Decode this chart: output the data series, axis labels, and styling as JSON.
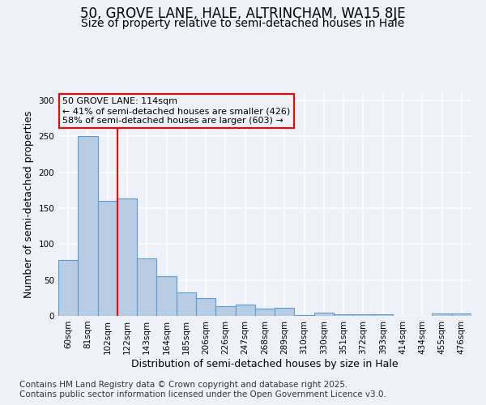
{
  "title": "50, GROVE LANE, HALE, ALTRINCHAM, WA15 8JE",
  "subtitle": "Size of property relative to semi-detached houses in Hale",
  "xlabel": "Distribution of semi-detached houses by size in Hale",
  "ylabel": "Number of semi-detached properties",
  "footnote1": "Contains HM Land Registry data © Crown copyright and database right 2025.",
  "footnote2": "Contains public sector information licensed under the Open Government Licence v3.0.",
  "bar_labels": [
    "60sqm",
    "81sqm",
    "102sqm",
    "122sqm",
    "143sqm",
    "164sqm",
    "185sqm",
    "206sqm",
    "226sqm",
    "247sqm",
    "268sqm",
    "289sqm",
    "310sqm",
    "330sqm",
    "351sqm",
    "372sqm",
    "393sqm",
    "414sqm",
    "434sqm",
    "455sqm",
    "476sqm"
  ],
  "bar_values": [
    78,
    250,
    160,
    163,
    80,
    55,
    33,
    25,
    14,
    16,
    10,
    11,
    1,
    5,
    2,
    2,
    2,
    0,
    0,
    3,
    3
  ],
  "bar_color": "#b8cce4",
  "bar_edge_color": "#5b9bd5",
  "vline_x": 2.5,
  "vline_color": "red",
  "annotation_title": "50 GROVE LANE: 114sqm",
  "annotation_line1": "← 41% of semi-detached houses are smaller (426)",
  "annotation_line2": "58% of semi-detached houses are larger (603) →",
  "annotation_box_color": "red",
  "ylim": [
    0,
    310
  ],
  "yticks": [
    0,
    50,
    100,
    150,
    200,
    250,
    300
  ],
  "background_color": "#eef2f8",
  "grid_color": "white",
  "title_fontsize": 12,
  "subtitle_fontsize": 10,
  "axis_label_fontsize": 9,
  "tick_fontsize": 7.5,
  "footnote_fontsize": 7.5
}
